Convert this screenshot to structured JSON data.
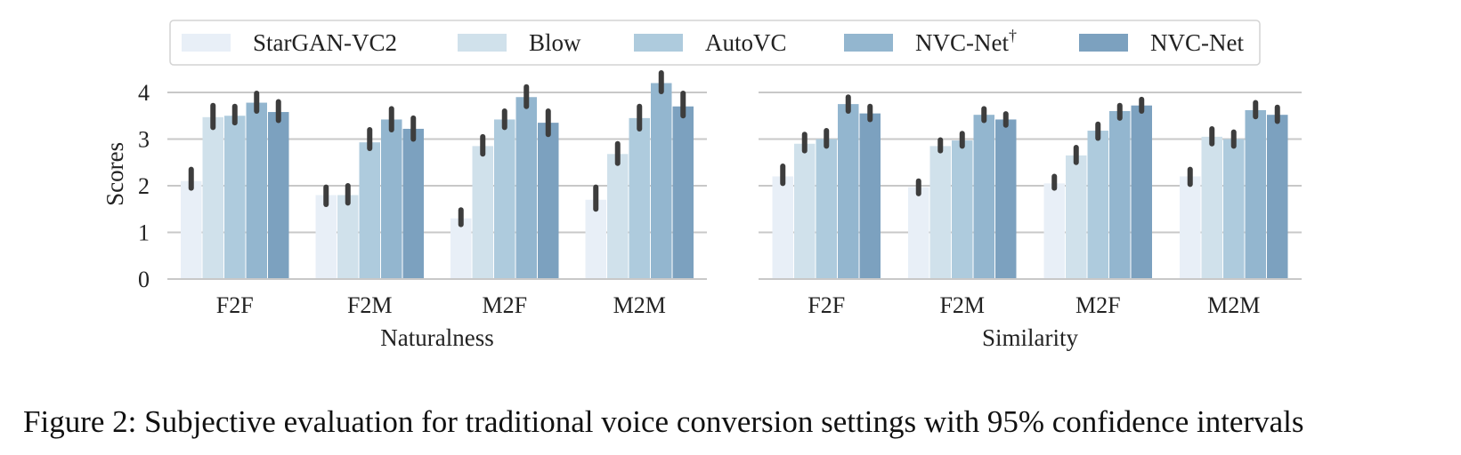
{
  "caption": "Figure 2: Subjective evaluation for traditional voice conversion settings with 95% confidence intervals",
  "chart_data": [
    {
      "type": "bar",
      "xlabel": "Naturalness",
      "ylabel": "Scores",
      "ylim": [
        0,
        4.5
      ],
      "yticks": [
        "0",
        "1",
        "2",
        "3",
        "4"
      ],
      "grid": true,
      "legend": "top",
      "categories": [
        "F2F",
        "F2M",
        "M2F",
        "M2M"
      ],
      "series": [
        {
          "name": "StarGAN-VC2",
          "color": "#e8eff7",
          "values": [
            2.1,
            1.8,
            1.3,
            1.7
          ],
          "ci_low": [
            1.95,
            1.6,
            1.17,
            1.5
          ],
          "ci_high": [
            2.35,
            1.97,
            1.48,
            1.97
          ]
        },
        {
          "name": "Blow",
          "color": "#d0e1eb",
          "values": [
            3.47,
            1.8,
            2.85,
            2.68
          ],
          "ci_low": [
            3.25,
            1.63,
            2.68,
            2.48
          ],
          "ci_high": [
            3.72,
            2.0,
            3.05,
            2.9
          ]
        },
        {
          "name": "AutoVC",
          "color": "#aecbdd",
          "values": [
            3.5,
            2.93,
            3.42,
            3.45
          ],
          "ci_low": [
            3.35,
            2.8,
            3.25,
            3.22
          ],
          "ci_high": [
            3.7,
            3.2,
            3.6,
            3.7
          ]
        },
        {
          "name": "NVC-Net†",
          "color": "#93b6cf",
          "values": [
            3.78,
            3.42,
            3.9,
            4.2
          ],
          "ci_low": [
            3.6,
            3.2,
            3.7,
            4.02
          ],
          "ci_high": [
            3.98,
            3.65,
            4.12,
            4.42
          ]
        },
        {
          "name": "NVC-Net",
          "color": "#7ca1bf",
          "values": [
            3.58,
            3.22,
            3.35,
            3.7
          ],
          "ci_low": [
            3.4,
            3.0,
            3.1,
            3.5
          ],
          "ci_high": [
            3.8,
            3.45,
            3.6,
            3.98
          ]
        }
      ]
    },
    {
      "type": "bar",
      "xlabel": "Similarity",
      "ylabel": "",
      "ylim": [
        0,
        4.5
      ],
      "grid": true,
      "categories": [
        "F2F",
        "F2M",
        "M2F",
        "M2M"
      ],
      "series": [
        {
          "name": "StarGAN-VC2",
          "color": "#e8eff7",
          "values": [
            2.2,
            1.97,
            2.05,
            2.2
          ],
          "ci_low": [
            2.05,
            1.83,
            1.95,
            2.03
          ],
          "ci_high": [
            2.42,
            2.1,
            2.2,
            2.35
          ]
        },
        {
          "name": "Blow",
          "color": "#d0e1eb",
          "values": [
            2.9,
            2.85,
            2.65,
            3.05
          ],
          "ci_low": [
            2.75,
            2.75,
            2.5,
            2.9
          ],
          "ci_high": [
            3.1,
            2.98,
            2.82,
            3.22
          ]
        },
        {
          "name": "AutoVC",
          "color": "#aecbdd",
          "values": [
            3.0,
            2.97,
            3.18,
            3.0
          ],
          "ci_low": [
            2.85,
            2.85,
            3.02,
            2.85
          ],
          "ci_high": [
            3.18,
            3.12,
            3.32,
            3.15
          ]
        },
        {
          "name": "NVC-Net†",
          "color": "#93b6cf",
          "values": [
            3.75,
            3.52,
            3.6,
            3.62
          ],
          "ci_low": [
            3.6,
            3.4,
            3.45,
            3.48
          ],
          "ci_high": [
            3.9,
            3.65,
            3.72,
            3.78
          ]
        },
        {
          "name": "NVC-Net",
          "color": "#7ca1bf",
          "values": [
            3.55,
            3.42,
            3.72,
            3.52
          ],
          "ci_low": [
            3.42,
            3.3,
            3.6,
            3.38
          ],
          "ci_high": [
            3.7,
            3.54,
            3.85,
            3.68
          ]
        }
      ]
    }
  ]
}
